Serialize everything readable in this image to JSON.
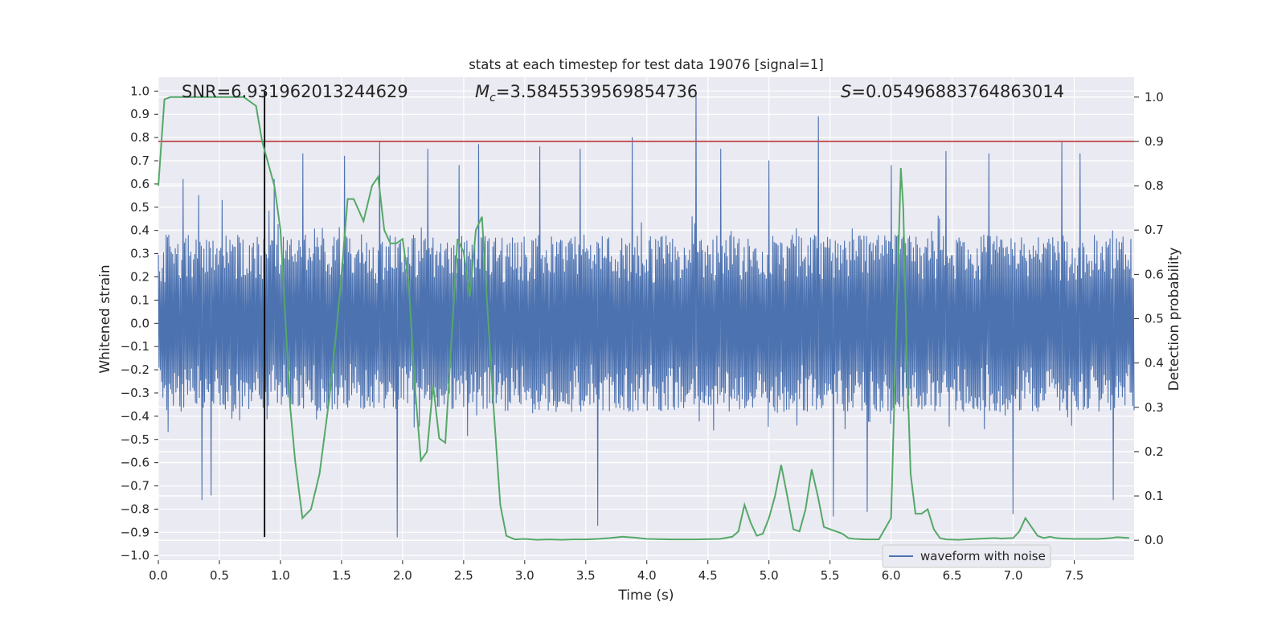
{
  "chart_data": {
    "type": "line",
    "title": "stats at each timestep for test data 19076 [signal=1]",
    "xlabel": "Time (s)",
    "ylabel": "Whitened strain",
    "y2label": "Detection probability",
    "xlim": [
      0.0,
      7.99
    ],
    "ylim": [
      -1.02,
      1.06
    ],
    "y2lim": [
      -0.045,
      1.045
    ],
    "xticks": [
      "0.0",
      "0.5",
      "1.0",
      "1.5",
      "2.0",
      "2.5",
      "3.0",
      "3.5",
      "4.0",
      "4.5",
      "5.0",
      "5.5",
      "6.0",
      "6.5",
      "7.0",
      "7.5"
    ],
    "yticks": [
      "−1.0",
      "−0.9",
      "−0.8",
      "−0.7",
      "−0.6",
      "−0.5",
      "−0.4",
      "−0.3",
      "−0.2",
      "−0.1",
      "0.0",
      "0.1",
      "0.2",
      "0.3",
      "0.4",
      "0.5",
      "0.6",
      "0.7",
      "0.8",
      "0.9",
      "1.0"
    ],
    "y2ticks": [
      "0.0",
      "0.1",
      "0.2",
      "0.3",
      "0.4",
      "0.5",
      "0.6",
      "0.7",
      "0.8",
      "0.9",
      "1.0"
    ],
    "grid": true,
    "annotations": {
      "snr_label": "SNR",
      "snr_value": "6.931962013244629",
      "mc_symbol": "M",
      "mc_subscript": "c",
      "mc_value": "3.5845539569854736",
      "s_symbol": "S",
      "s_value": "0.05496883764863014"
    },
    "threshold": {
      "y2": 0.9,
      "color": "#c44e52"
    },
    "marker_time": {
      "x": 0.87,
      "y_range": [
        -0.92,
        1.0
      ],
      "color": "#000000"
    },
    "legend": {
      "label": "waveform with noise",
      "position": "lower-right"
    },
    "series": [
      {
        "name": "waveform with noise",
        "color": "#4c72b0",
        "axis": "left",
        "envelope": {
          "typical_amplitude": 0.38,
          "peak_max": 1.0,
          "peak_min": -0.92
        },
        "spikes": [
          {
            "x": 0.2,
            "y": 0.62
          },
          {
            "x": 0.33,
            "y": 0.55
          },
          {
            "x": 0.35,
            "y": -0.76
          },
          {
            "x": 0.43,
            "y": -0.74
          },
          {
            "x": 0.52,
            "y": 0.53
          },
          {
            "x": 0.95,
            "y": 0.62
          },
          {
            "x": 1.18,
            "y": 0.73
          },
          {
            "x": 1.52,
            "y": 0.72
          },
          {
            "x": 1.81,
            "y": 0.78
          },
          {
            "x": 1.95,
            "y": -0.92
          },
          {
            "x": 2.2,
            "y": 0.75
          },
          {
            "x": 2.46,
            "y": 0.68
          },
          {
            "x": 2.62,
            "y": 0.77
          },
          {
            "x": 3.12,
            "y": 0.76
          },
          {
            "x": 3.45,
            "y": 0.75
          },
          {
            "x": 3.6,
            "y": -0.87
          },
          {
            "x": 3.88,
            "y": 0.8
          },
          {
            "x": 4.4,
            "y": 1.0
          },
          {
            "x": 4.6,
            "y": 0.75
          },
          {
            "x": 5.0,
            "y": 0.7
          },
          {
            "x": 5.4,
            "y": 0.89
          },
          {
            "x": 5.52,
            "y": -0.83
          },
          {
            "x": 5.8,
            "y": -0.81
          },
          {
            "x": 6.0,
            "y": 0.68
          },
          {
            "x": 6.45,
            "y": 0.74
          },
          {
            "x": 6.8,
            "y": 0.73
          },
          {
            "x": 7.0,
            "y": -0.82
          },
          {
            "x": 7.4,
            "y": 0.78
          },
          {
            "x": 7.55,
            "y": 0.73
          },
          {
            "x": 7.82,
            "y": -0.76
          }
        ]
      },
      {
        "color": "#55a868",
        "axis": "right",
        "x": [
          0.0,
          0.05,
          0.1,
          0.2,
          0.3,
          0.4,
          0.5,
          0.6,
          0.7,
          0.75,
          0.8,
          0.85,
          0.9,
          0.95,
          1.0,
          1.05,
          1.08,
          1.12,
          1.18,
          1.25,
          1.32,
          1.4,
          1.45,
          1.5,
          1.55,
          1.6,
          1.68,
          1.75,
          1.8,
          1.85,
          1.9,
          1.95,
          2.0,
          2.05,
          2.1,
          2.15,
          2.2,
          2.25,
          2.3,
          2.35,
          2.4,
          2.45,
          2.5,
          2.55,
          2.6,
          2.65,
          2.7,
          2.75,
          2.8,
          2.85,
          2.92,
          3.0,
          3.1,
          3.2,
          3.3,
          3.4,
          3.5,
          3.6,
          3.7,
          3.8,
          3.85,
          3.9,
          4.0,
          4.2,
          4.4,
          4.6,
          4.7,
          4.75,
          4.8,
          4.85,
          4.9,
          4.95,
          5.0,
          5.05,
          5.1,
          5.15,
          5.2,
          5.25,
          5.3,
          5.35,
          5.4,
          5.45,
          5.5,
          5.55,
          5.6,
          5.65,
          5.7,
          5.8,
          5.9,
          6.0,
          6.02,
          6.05,
          6.08,
          6.1,
          6.13,
          6.16,
          6.2,
          6.25,
          6.3,
          6.35,
          6.4,
          6.45,
          6.55,
          6.7,
          6.85,
          6.9,
          7.0,
          7.05,
          7.1,
          7.15,
          7.2,
          7.25,
          7.3,
          7.35,
          7.4,
          7.5,
          7.7,
          7.8,
          7.85,
          7.95
        ],
        "y": [
          0.8,
          0.995,
          1.0,
          1.0,
          1.0,
          1.0,
          1.0,
          1.0,
          1.0,
          0.99,
          0.98,
          0.9,
          0.85,
          0.8,
          0.7,
          0.45,
          0.3,
          0.18,
          0.05,
          0.07,
          0.15,
          0.32,
          0.45,
          0.6,
          0.77,
          0.77,
          0.72,
          0.8,
          0.82,
          0.7,
          0.67,
          0.67,
          0.68,
          0.58,
          0.35,
          0.18,
          0.2,
          0.35,
          0.23,
          0.22,
          0.45,
          0.68,
          0.65,
          0.55,
          0.7,
          0.73,
          0.5,
          0.28,
          0.08,
          0.01,
          0.002,
          0.003,
          0.001,
          0.002,
          0.001,
          0.002,
          0.002,
          0.003,
          0.005,
          0.008,
          0.007,
          0.006,
          0.003,
          0.002,
          0.002,
          0.003,
          0.008,
          0.02,
          0.08,
          0.04,
          0.01,
          0.015,
          0.05,
          0.1,
          0.17,
          0.1,
          0.025,
          0.02,
          0.07,
          0.16,
          0.1,
          0.03,
          0.025,
          0.02,
          0.015,
          0.005,
          0.003,
          0.002,
          0.002,
          0.05,
          0.25,
          0.55,
          0.84,
          0.75,
          0.4,
          0.15,
          0.06,
          0.06,
          0.07,
          0.025,
          0.005,
          0.002,
          0.001,
          0.003,
          0.005,
          0.004,
          0.005,
          0.02,
          0.05,
          0.03,
          0.01,
          0.005,
          0.008,
          0.005,
          0.004,
          0.003,
          0.003,
          0.005,
          0.007,
          0.005
        ]
      }
    ]
  }
}
